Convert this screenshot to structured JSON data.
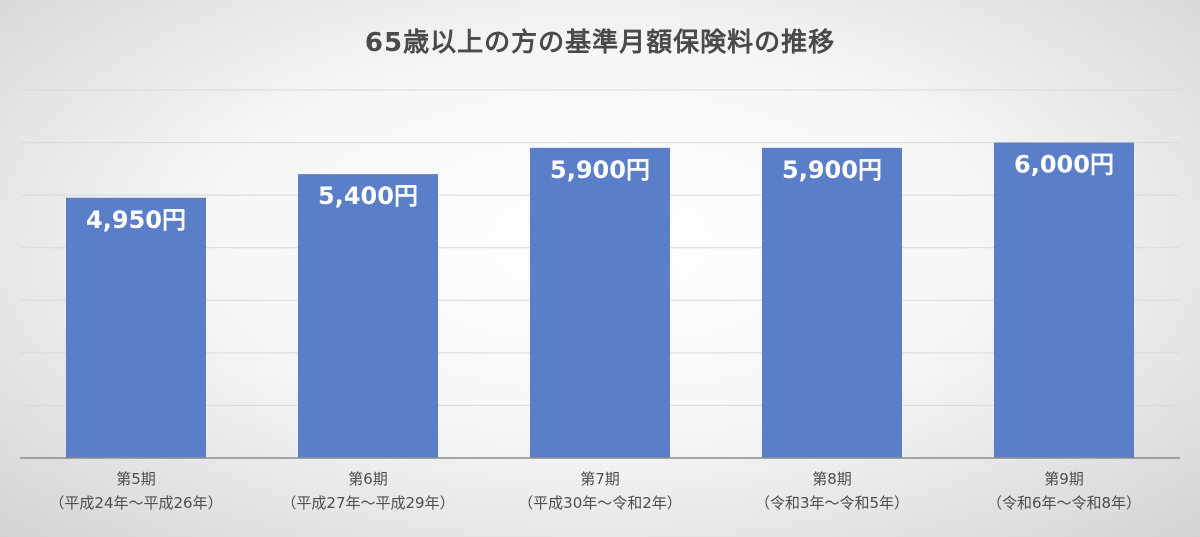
{
  "chart_data": {
    "type": "bar",
    "title": "65歳以上の方の基準月額保険料の推移",
    "categories": [
      [
        "第5期",
        "（平成24年～平成26年）"
      ],
      [
        "第6期",
        "（平成27年～平成29年）"
      ],
      [
        "第7期",
        "（平成30年～令和2年）"
      ],
      [
        "第8期",
        "（令和3年～令和5年）"
      ],
      [
        "第9期",
        "（令和6年～令和8年）"
      ]
    ],
    "values": [
      4950,
      5400,
      5900,
      5900,
      6000
    ],
    "data_labels": [
      "4,950円",
      "5,400円",
      "5,900円",
      "5,900円",
      "6,000円"
    ],
    "ylim": [
      0,
      7000
    ],
    "grid": true,
    "legend": "none",
    "xlabel": "",
    "ylabel": "",
    "colors": {
      "bar": "#5a7fc8",
      "grid": "#d9d9d9",
      "axis": "#8c8c8c"
    }
  }
}
